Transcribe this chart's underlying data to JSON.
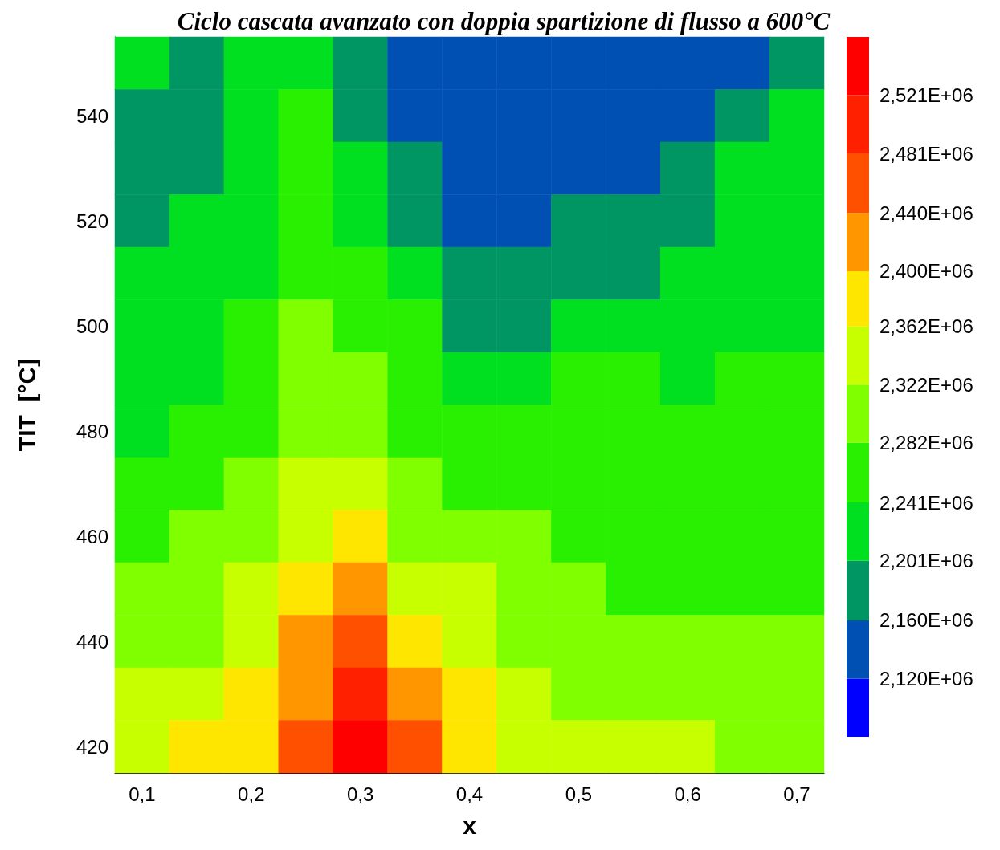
{
  "chart_data": {
    "type": "heatmap",
    "title": "Ciclo cascata avanzato con doppia spartizione di flusso a 600°C",
    "xlabel": "x",
    "ylabel": "TIT  [°C]",
    "categories": [
      "0,1",
      null,
      "0,2",
      null,
      "0,3",
      null,
      "0,4",
      null,
      "0,5",
      null,
      "0,6",
      null,
      "0,7"
    ],
    "y_categories": [
      null,
      "540",
      null,
      "520",
      null,
      "500",
      null,
      "480",
      null,
      "460",
      null,
      "440",
      null,
      "420"
    ],
    "cells": [
      [
        2221000,
        2180000,
        2221000,
        2221000,
        2180000,
        2140000,
        2140000,
        2140000,
        2140000,
        2140000,
        2140000,
        2140000,
        2180000
      ],
      [
        2180000,
        2180000,
        2221000,
        2261000,
        2180000,
        2140000,
        2140000,
        2140000,
        2140000,
        2140000,
        2140000,
        2180000,
        2221000
      ],
      [
        2180000,
        2180000,
        2221000,
        2261000,
        2221000,
        2180000,
        2140000,
        2140000,
        2140000,
        2140000,
        2180000,
        2221000,
        2221000
      ],
      [
        2180000,
        2221000,
        2221000,
        2261000,
        2221000,
        2180000,
        2140000,
        2140000,
        2180000,
        2180000,
        2180000,
        2221000,
        2221000
      ],
      [
        2221000,
        2221000,
        2221000,
        2261000,
        2261000,
        2221000,
        2180000,
        2180000,
        2180000,
        2180000,
        2221000,
        2221000,
        2221000
      ],
      [
        2221000,
        2221000,
        2261000,
        2302000,
        2261000,
        2261000,
        2180000,
        2180000,
        2221000,
        2221000,
        2221000,
        2221000,
        2221000
      ],
      [
        2221000,
        2221000,
        2261000,
        2302000,
        2302000,
        2261000,
        2221000,
        2221000,
        2261000,
        2261000,
        2221000,
        2261000,
        2261000
      ],
      [
        2221000,
        2261000,
        2261000,
        2302000,
        2302000,
        2261000,
        2261000,
        2261000,
        2261000,
        2261000,
        2261000,
        2261000,
        2261000
      ],
      [
        2261000,
        2261000,
        2302000,
        2342000,
        2342000,
        2302000,
        2261000,
        2261000,
        2261000,
        2261000,
        2261000,
        2261000,
        2261000
      ],
      [
        2261000,
        2302000,
        2302000,
        2342000,
        2381000,
        2302000,
        2302000,
        2302000,
        2261000,
        2261000,
        2261000,
        2261000,
        2261000
      ],
      [
        2302000,
        2302000,
        2342000,
        2381000,
        2420000,
        2342000,
        2342000,
        2302000,
        2302000,
        2261000,
        2261000,
        2261000,
        2261000
      ],
      [
        2302000,
        2302000,
        2342000,
        2420000,
        2460000,
        2381000,
        2342000,
        2302000,
        2302000,
        2302000,
        2302000,
        2302000,
        2302000
      ],
      [
        2342000,
        2342000,
        2381000,
        2420000,
        2501000,
        2420000,
        2381000,
        2342000,
        2302000,
        2302000,
        2302000,
        2302000,
        2302000
      ],
      [
        2342000,
        2381000,
        2381000,
        2460000,
        2541000,
        2460000,
        2381000,
        2342000,
        2342000,
        2342000,
        2342000,
        2302000,
        2302000
      ]
    ],
    "clim": [
      2080000,
      2561000
    ],
    "cticks": [
      {
        "value": 2120000,
        "label": "2,120E+06"
      },
      {
        "value": 2160000,
        "label": "2,160E+06"
      },
      {
        "value": 2201000,
        "label": "2,201E+06"
      },
      {
        "value": 2241000,
        "label": "2,241E+06"
      },
      {
        "value": 2282000,
        "label": "2,282E+06"
      },
      {
        "value": 2322000,
        "label": "2,322E+06"
      },
      {
        "value": 2362000,
        "label": "2,362E+06"
      },
      {
        "value": 2400000,
        "label": "2,400E+06"
      },
      {
        "value": 2440000,
        "label": "2,440E+06"
      },
      {
        "value": 2481000,
        "label": "2,481E+06"
      },
      {
        "value": 2521000,
        "label": "2,521E+06"
      }
    ],
    "colors": [
      "#0000ff",
      "#0050b4",
      "#009664",
      "#00e020",
      "#28f000",
      "#80ff00",
      "#c8ff00",
      "#ffe600",
      "#ff9600",
      "#ff5000",
      "#ff2000",
      "#ff0000"
    ]
  }
}
